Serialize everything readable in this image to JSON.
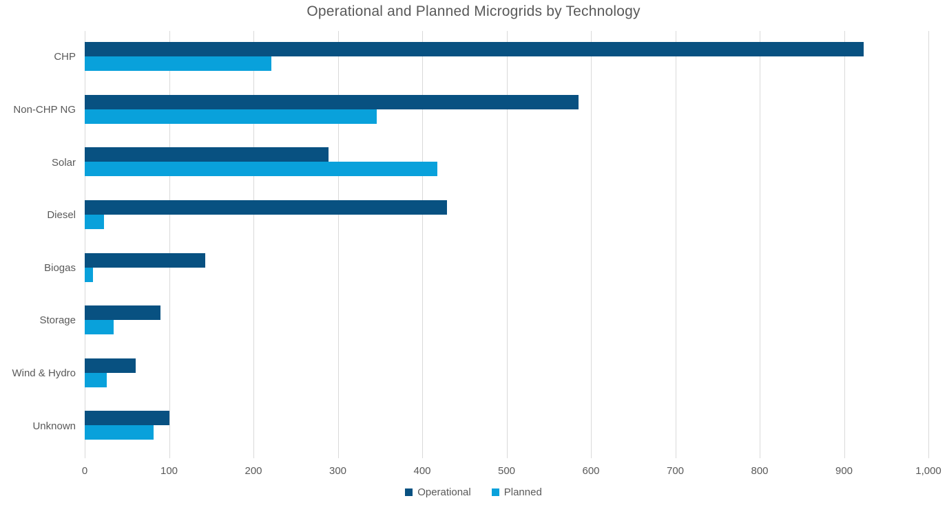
{
  "chart_data": {
    "type": "bar",
    "orientation": "horizontal",
    "title": "Operational and Planned Microgrids by Technology",
    "categories": [
      "CHP",
      "Non-CHP NG",
      "Solar",
      "Diesel",
      "Biogas",
      "Storage",
      "Wind & Hydro",
      "Unknown"
    ],
    "series": [
      {
        "name": "Operational",
        "color": "#085181",
        "values": [
          923,
          585,
          289,
          429,
          143,
          90,
          60,
          100
        ]
      },
      {
        "name": "Planned",
        "color": "#09a1db",
        "values": [
          221,
          346,
          418,
          23,
          10,
          34,
          26,
          82
        ]
      }
    ],
    "xlabel": "",
    "ylabel": "",
    "xlim": [
      0,
      1000
    ],
    "xticks": [
      0,
      100,
      200,
      300,
      400,
      500,
      600,
      700,
      800,
      900,
      1000
    ],
    "xtick_labels": [
      "0",
      "100",
      "200",
      "300",
      "400",
      "500",
      "600",
      "700",
      "800",
      "900",
      "1,000"
    ],
    "grid": "vertical",
    "gridline_color": "#d9d9d9",
    "text_color": "#595959",
    "legend_position": "bottom"
  }
}
